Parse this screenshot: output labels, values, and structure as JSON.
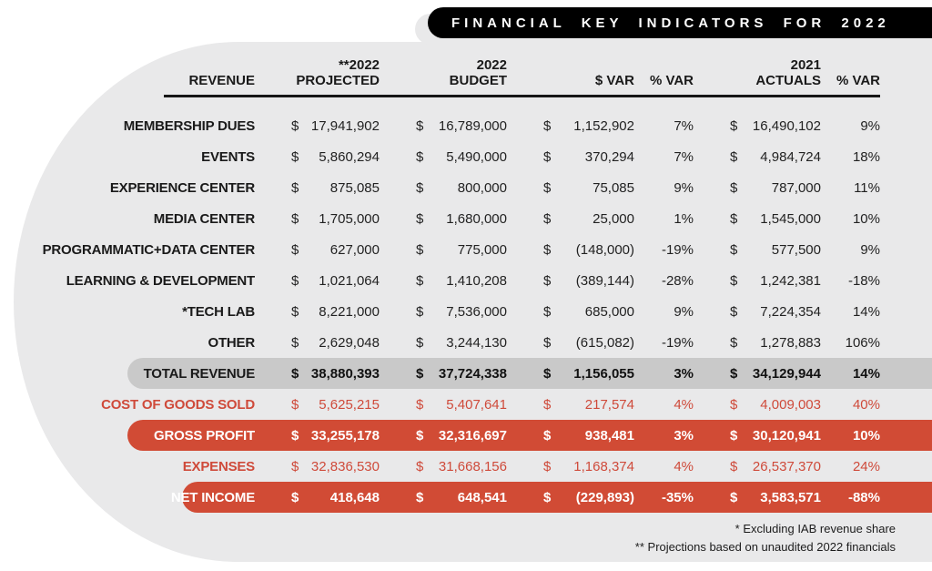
{
  "title_bar": {
    "text": "FINANCIAL KEY INDICATORS FOR 2022"
  },
  "chart_data": {
    "type": "table",
    "title": "FINANCIAL KEY INDICATORS FOR 2022",
    "currency": "$",
    "headers": {
      "revenue": "REVENUE",
      "projected": "**2022\nPROJECTED",
      "budget": "2022\nBUDGET",
      "dollar_var": "$ VAR",
      "pct_var": "% VAR",
      "actuals": "2021\nACTUALS",
      "pct_var_2": "% VAR"
    },
    "rows": [
      {
        "label": "MEMBERSHIP DUES",
        "projected": "17,941,902",
        "budget": "16,789,000",
        "dollar_var": "1,152,902",
        "pct_var": "7%",
        "actuals": "16,490,102",
        "pct_var_2": "9%",
        "style": "r-normal"
      },
      {
        "label": "EVENTS",
        "projected": "5,860,294",
        "budget": "5,490,000",
        "dollar_var": "370,294",
        "pct_var": "7%",
        "actuals": "4,984,724",
        "pct_var_2": "18%",
        "style": "r-normal"
      },
      {
        "label": "EXPERIENCE CENTER",
        "projected": "875,085",
        "budget": "800,000",
        "dollar_var": "75,085",
        "pct_var": "9%",
        "actuals": "787,000",
        "pct_var_2": "11%",
        "style": "r-normal"
      },
      {
        "label": "MEDIA CENTER",
        "projected": "1,705,000",
        "budget": "1,680,000",
        "dollar_var": "25,000",
        "pct_var": "1%",
        "actuals": "1,545,000",
        "pct_var_2": "10%",
        "style": "r-normal"
      },
      {
        "label": "PROGRAMMATIC+DATA CENTER",
        "projected": "627,000",
        "budget": "775,000",
        "dollar_var": "(148,000)",
        "pct_var": "-19%",
        "actuals": "577,500",
        "pct_var_2": "9%",
        "style": "r-normal"
      },
      {
        "label": "LEARNING & DEVELOPMENT",
        "projected": "1,021,064",
        "budget": "1,410,208",
        "dollar_var": "(389,144)",
        "pct_var": "-28%",
        "actuals": "1,242,381",
        "pct_var_2": "-18%",
        "style": "r-normal"
      },
      {
        "label": "*TECH LAB",
        "projected": "8,221,000",
        "budget": "7,536,000",
        "dollar_var": "685,000",
        "pct_var": "9%",
        "actuals": "7,224,354",
        "pct_var_2": "14%",
        "style": "r-normal"
      },
      {
        "label": "OTHER",
        "projected": "2,629,048",
        "budget": "3,244,130",
        "dollar_var": "(615,082)",
        "pct_var": "-19%",
        "actuals": "1,278,883",
        "pct_var_2": "106%",
        "style": "r-normal"
      },
      {
        "label": "TOTAL REVENUE",
        "projected": "38,880,393",
        "budget": "37,724,338",
        "dollar_var": "1,156,055",
        "pct_var": "3%",
        "actuals": "34,129,944",
        "pct_var_2": "14%",
        "style": "r-total"
      },
      {
        "label": "COST OF GOODS SOLD",
        "projected": "5,625,215",
        "budget": "5,407,641",
        "dollar_var": "217,574",
        "pct_var": "4%",
        "actuals": "4,009,003",
        "pct_var_2": "40%",
        "style": "r-red"
      },
      {
        "label": "GROSS PROFIT",
        "projected": "33,255,178",
        "budget": "32,316,697",
        "dollar_var": "938,481",
        "pct_var": "3%",
        "actuals": "30,120,941",
        "pct_var_2": "10%",
        "style": "r-gross"
      },
      {
        "label": "EXPENSES",
        "projected": "32,836,530",
        "budget": "31,668,156",
        "dollar_var": "1,168,374",
        "pct_var": "4%",
        "actuals": "26,537,370",
        "pct_var_2": "24%",
        "style": "r-red"
      },
      {
        "label": "NET INCOME",
        "projected": "418,648",
        "budget": "648,541",
        "dollar_var": "(229,893)",
        "pct_var": "-35%",
        "actuals": "3,583,571",
        "pct_var_2": "-88%",
        "style": "r-net"
      }
    ]
  },
  "footnotes": {
    "line1": "* Excluding IAB revenue share",
    "line2": "** Projections based on unaudited 2022 financials"
  },
  "colors": {
    "accent_red": "#d14b35",
    "red_text": "#cf4a3a",
    "band_gray": "#c9c9c9",
    "background_gray": "#e9e9ea",
    "title_bar_black": "#000000"
  }
}
